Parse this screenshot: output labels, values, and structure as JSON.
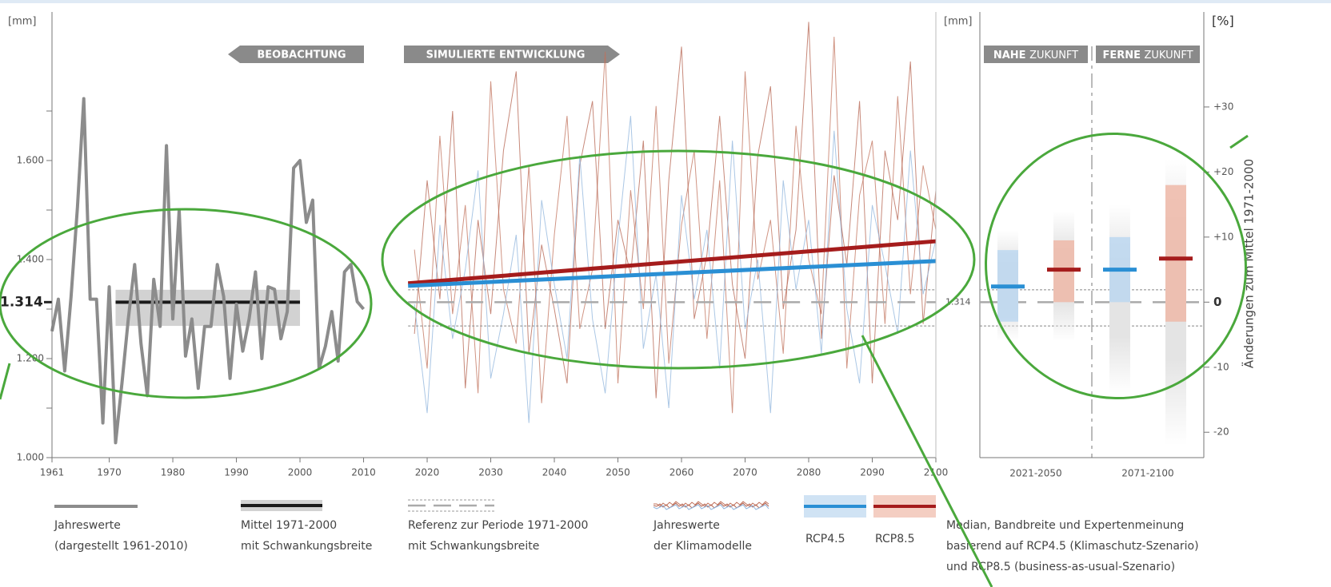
{
  "chart_data": [
    {
      "type": "line",
      "y_label": "[mm]",
      "phase_labels": [
        "BEOBACHTUNG",
        "SIMULIERTE ENTWICKLUNG"
      ],
      "xlim": [
        1961,
        2100
      ],
      "ylim": [
        1000,
        1900
      ],
      "xticks": [
        1961,
        1970,
        1980,
        1990,
        2000,
        2010,
        2020,
        2030,
        2040,
        2050,
        2060,
        2070,
        2080,
        2090,
        2100
      ],
      "yticks": [
        {
          "value": 1000,
          "label": "1.000"
        },
        {
          "value": 1200,
          "label": "1.200"
        },
        {
          "value": 1400,
          "label": "1.400"
        },
        {
          "value": 1600,
          "label": "1.600"
        }
      ],
      "minor_yticks": [
        1100,
        1300,
        1500,
        1700
      ],
      "observation": {
        "color": "#8c8c8c",
        "x": [
          1961,
          1962,
          1963,
          1964,
          1965,
          1966,
          1967,
          1968,
          1969,
          1970,
          1971,
          1972,
          1973,
          1974,
          1975,
          1976,
          1977,
          1978,
          1979,
          1980,
          1981,
          1982,
          1983,
          1984,
          1985,
          1986,
          1987,
          1988,
          1989,
          1990,
          1991,
          1992,
          1993,
          1994,
          1995,
          1996,
          1997,
          1998,
          1999,
          2000,
          2001,
          2002,
          2003,
          2004,
          2005,
          2006,
          2007,
          2008,
          2009,
          2010
        ],
        "values": [
          1255,
          1320,
          1175,
          1325,
          1505,
          1725,
          1320,
          1320,
          1070,
          1345,
          1030,
          1150,
          1280,
          1390,
          1230,
          1125,
          1360,
          1265,
          1630,
          1280,
          1500,
          1205,
          1280,
          1140,
          1265,
          1265,
          1390,
          1325,
          1160,
          1310,
          1215,
          1280,
          1375,
          1200,
          1345,
          1340,
          1240,
          1295,
          1585,
          1600,
          1475,
          1520,
          1180,
          1225,
          1295,
          1195,
          1375,
          1390,
          1315,
          1300
        ]
      },
      "mean": {
        "color": "#1a1a1a",
        "band_color": "#d2d2d2",
        "x": [
          1971,
          2000
        ],
        "value": 1314,
        "band": [
          1266,
          1339
        ]
      },
      "reference": {
        "x": [
          2017,
          2100
        ],
        "value": 1314,
        "value_label": "1.314",
        "band": [
          1266,
          1339
        ]
      },
      "model_runs": {
        "x": [
          2018,
          2020,
          2022,
          2024,
          2026,
          2028,
          2030,
          2032,
          2034,
          2036,
          2038,
          2040,
          2042,
          2044,
          2046,
          2048,
          2050,
          2052,
          2054,
          2056,
          2058,
          2060,
          2062,
          2064,
          2066,
          2068,
          2070,
          2072,
          2074,
          2076,
          2078,
          2080,
          2082,
          2084,
          2086,
          2088,
          2090,
          2092,
          2094,
          2096,
          2098,
          2100
        ],
        "runs": [
          {
            "color": "#c0705a",
            "values": [
              1420,
              1180,
              1650,
              1290,
              1510,
              1130,
              1760,
              1340,
              1230,
              1590,
              1110,
              1450,
              1690,
              1260,
              1380,
              1820,
              1150,
              1540,
              1300,
              1710,
              1190,
              1470,
              1620,
              1240,
              1560,
              1090,
              1780,
              1360,
              1480,
              1210,
              1670,
              1400,
              1290,
              1850,
              1180,
              1530,
              1640,
              1270,
              1730,
              1330,
              1590,
              1460
            ]
          },
          {
            "color": "#b4624e",
            "values": [
              1250,
              1560,
              1320,
              1700,
              1140,
              1480,
              1290,
              1620,
              1780,
              1210,
              1430,
              1300,
              1150,
              1590,
              1720,
              1260,
              1480,
              1370,
              1640,
              1120,
              1560,
              1830,
              1280,
              1410,
              1690,
              1350,
              1200,
              1610,
              1750,
              1300,
              1460,
              1880,
              1240,
              1570,
              1390,
              1720,
              1150,
              1620,
              1480,
              1800,
              1270,
              1540
            ]
          },
          {
            "color": "#8fb4dc",
            "values": [
              1310,
              1090,
              1470,
              1240,
              1380,
              1580,
              1160,
              1290,
              1450,
              1070,
              1520,
              1350,
              1200,
              1610,
              1280,
              1130,
              1440,
              1690,
              1220,
              1370,
              1100,
              1530,
              1320,
              1460,
              1180,
              1640,
              1260,
              1400,
              1090,
              1560,
              1340,
              1480,
              1210,
              1660,
              1300,
              1150,
              1510,
              1390,
              1250,
              1620,
              1330,
              1440
            ]
          }
        ]
      },
      "trends": [
        {
          "color": "#a51c1c",
          "x": [
            2017,
            2100
          ],
          "values": [
            1352,
            1437
          ]
        },
        {
          "color": "#2a8fd4",
          "x": [
            2017,
            2100
          ],
          "values": [
            1347,
            1397
          ]
        }
      ]
    },
    {
      "type": "range",
      "y_label": "[mm]",
      "y2_label": "[%]",
      "y2_title": "Änderungen zum Mittel 1971-2000",
      "categories": [
        "2021-2050",
        "2071-2100"
      ],
      "headers": [
        [
          "NAHE",
          "ZUKUNFT"
        ],
        [
          "FERNE",
          "ZUKUNFT"
        ]
      ],
      "y2lim": [
        -23.9,
        44.6
      ],
      "y2ticks": [
        -20,
        -10,
        0,
        {
          "value": 10,
          "label": "+10"
        },
        {
          "value": 20,
          "label": "+20"
        },
        {
          "value": 30,
          "label": "+30"
        }
      ],
      "series": [
        {
          "name": "RCP4.5",
          "color": "#2a8fd4",
          "box_color": "#bcd7f0",
          "median": [
            2.4,
            5
          ],
          "box_low": [
            -3,
            0
          ],
          "box_high": [
            8,
            10
          ],
          "range_low": [
            -6,
            -14
          ],
          "range_high": [
            11,
            15
          ]
        },
        {
          "name": "RCP8.5",
          "color": "#a51c1c",
          "box_color": "#efb9a8",
          "median": [
            5,
            6.7
          ],
          "box_low": [
            0,
            -3
          ],
          "box_high": [
            9.5,
            18
          ],
          "range_low": [
            -6,
            -22
          ],
          "range_high": [
            14,
            22
          ]
        }
      ]
    }
  ],
  "legend": [
    [
      "Jahreswerte",
      "(dargestellt 1961-2010)"
    ],
    [
      "Mittel 1971-2000",
      "mit Schwankungsbreite"
    ],
    [
      "Referenz zur Periode 1971-2000",
      "mit Schwankungsbreite"
    ],
    [
      "Jahreswerte",
      "der Klimamodelle"
    ],
    [
      "Median, Bandbreite und Expertenmeinung",
      "basierend auf RCP4.5 (Klimaschutz-Szenario)",
      "und RCP8.5 (business-as-usual-Szenario)"
    ]
  ]
}
